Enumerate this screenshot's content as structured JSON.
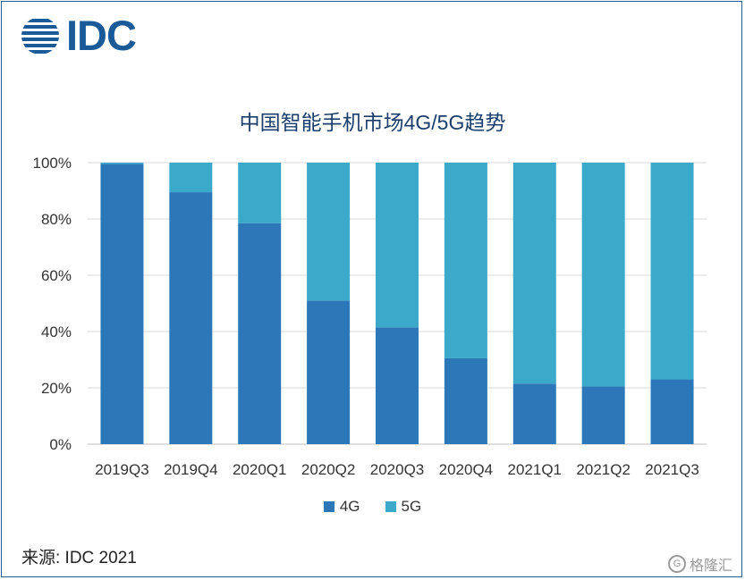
{
  "logo": {
    "text": "IDC"
  },
  "chart_data": {
    "type": "bar",
    "stacked": true,
    "title": "中国智能手机市场4G/5G趋势",
    "categories": [
      "2019Q3",
      "2019Q4",
      "2020Q1",
      "2020Q2",
      "2020Q3",
      "2020Q4",
      "2021Q1",
      "2021Q2",
      "2021Q3"
    ],
    "series": [
      {
        "name": "4G",
        "color": "#2b77b8",
        "values": [
          99.5,
          89.5,
          78.5,
          51,
          41.5,
          30.5,
          21.5,
          20.5,
          23
        ]
      },
      {
        "name": "5G",
        "color": "#3ba9c9",
        "values": [
          0.5,
          10.5,
          21.5,
          49,
          58.5,
          69.5,
          78.5,
          79.5,
          77
        ]
      }
    ],
    "yticks": [
      "0%",
      "20%",
      "40%",
      "60%",
      "80%",
      "100%"
    ],
    "ylim": [
      0,
      100
    ],
    "grid": true,
    "legend_position": "bottom"
  },
  "source": "来源: IDC 2021",
  "watermark": "格隆汇",
  "colors": {
    "logo": "#1a5a99",
    "title": "#1b3f6d",
    "grid": "#d9d9d9"
  }
}
